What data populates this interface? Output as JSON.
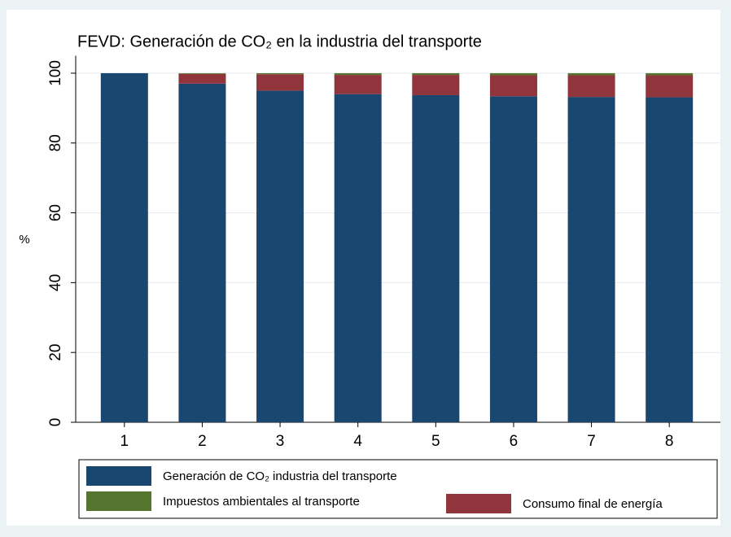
{
  "chart_data": {
    "type": "stacked-bar",
    "title": "FEVD: Generación de CO₂ en la industria del transporte",
    "y_label": "%",
    "categories": [
      "1",
      "2",
      "3",
      "4",
      "5",
      "6",
      "7",
      "8"
    ],
    "series": [
      {
        "name": "Generación de CO₂ industria del transporte",
        "color": "#1a476f",
        "values": [
          100,
          97,
          95,
          94,
          93.7,
          93.4,
          93.2,
          93.1
        ]
      },
      {
        "name": "Consumo final de energía",
        "color": "#90353b",
        "values": [
          0,
          2.8,
          4.7,
          5.5,
          5.8,
          6.0,
          6.2,
          6.3
        ]
      },
      {
        "name": "Impuestos ambientales al transporte",
        "color": "#55752f",
        "values": [
          0,
          0.2,
          0.3,
          0.5,
          0.5,
          0.6,
          0.6,
          0.6
        ]
      }
    ],
    "ylim": [
      0,
      105
    ],
    "yticks": [
      0,
      20,
      40,
      60,
      80,
      100
    ],
    "grid": true
  }
}
